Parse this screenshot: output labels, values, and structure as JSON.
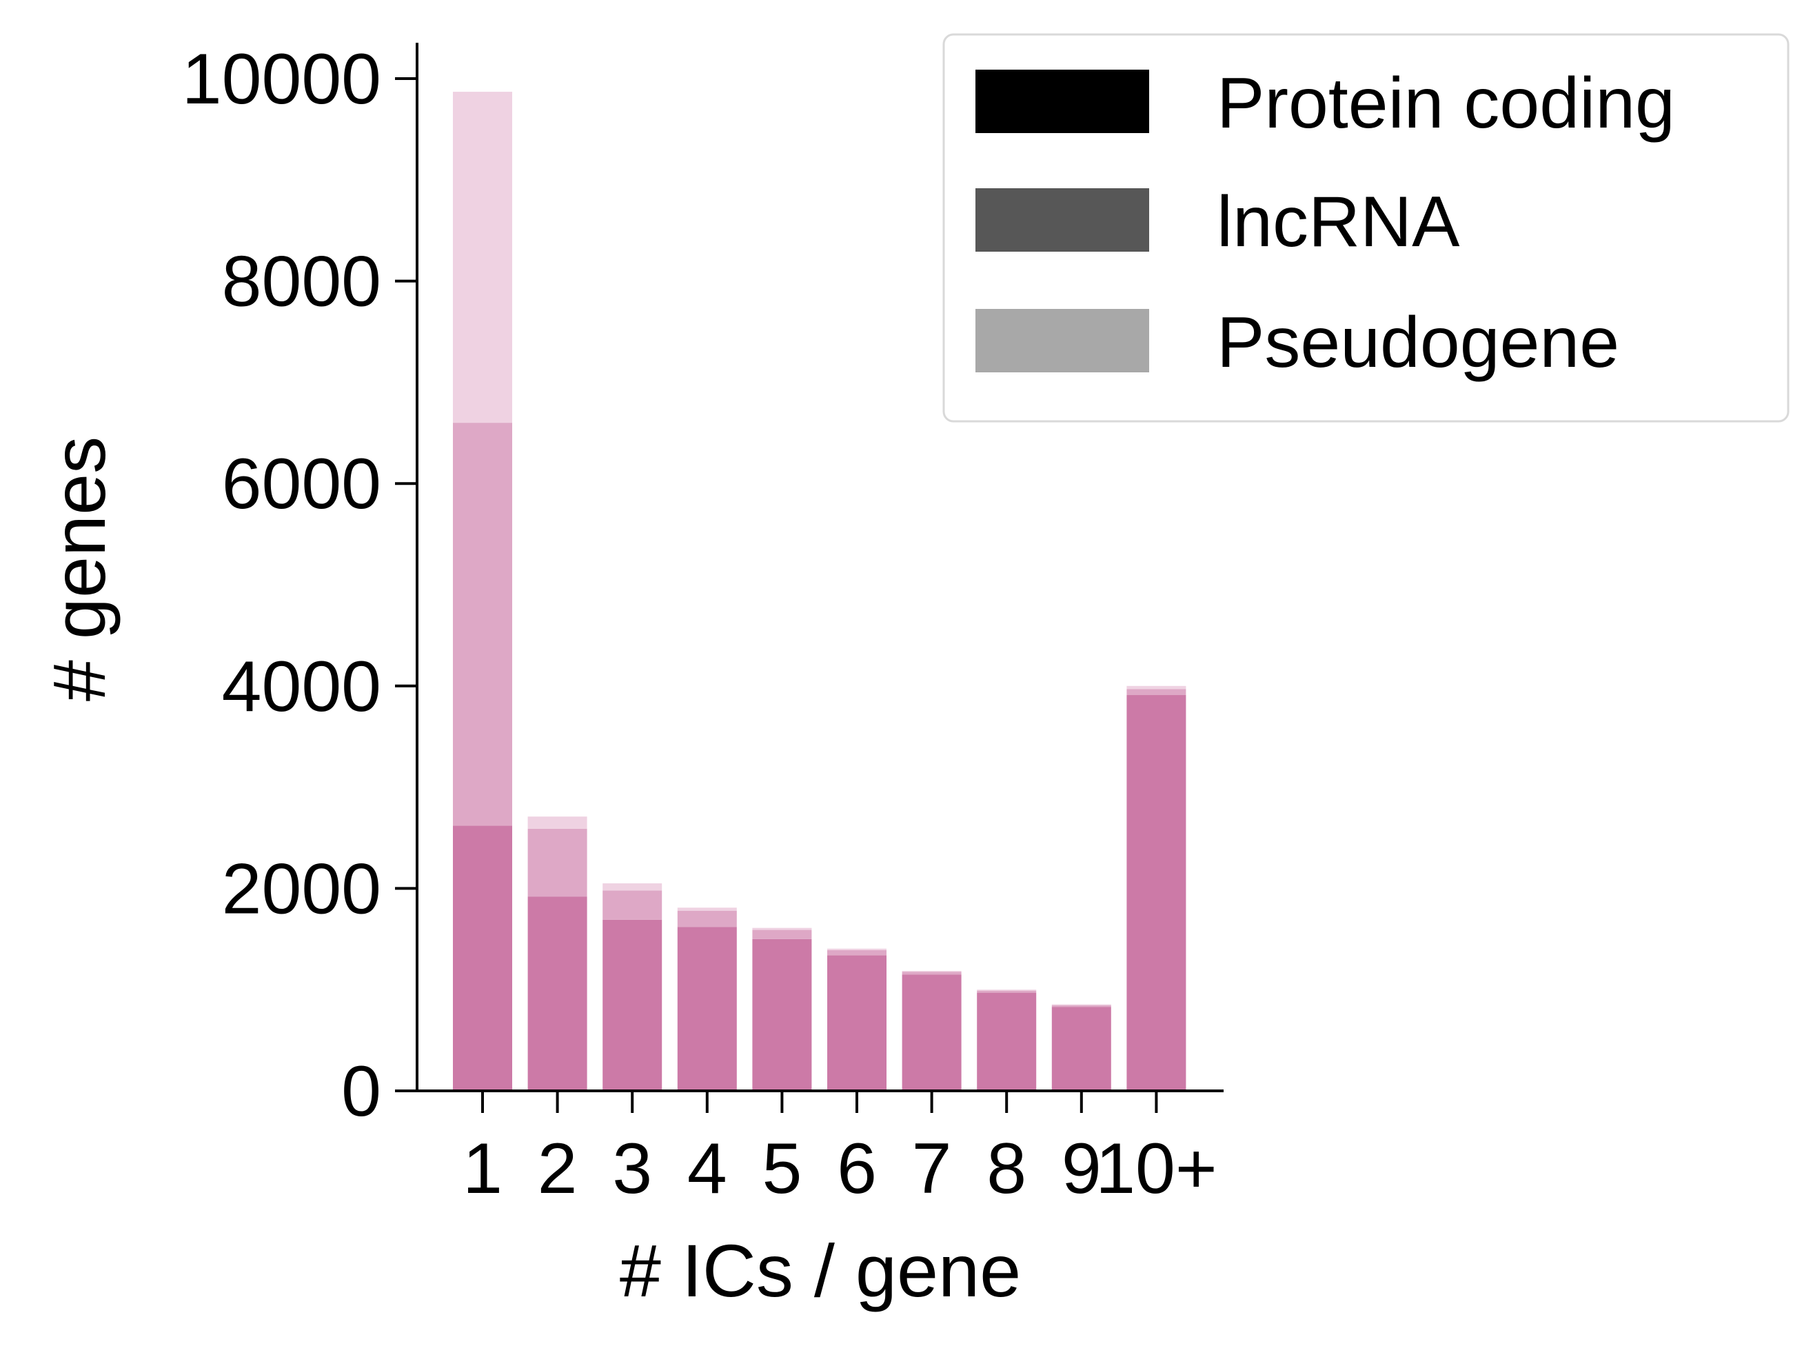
{
  "chart_data": {
    "type": "bar",
    "stacked": true,
    "categories": [
      "1",
      "2",
      "3",
      "4",
      "5",
      "6",
      "7",
      "8",
      "9",
      "10+"
    ],
    "series": [
      {
        "name": "Protein coding",
        "values": [
          2620,
          1920,
          1690,
          1620,
          1500,
          1340,
          1150,
          970,
          830,
          3910
        ]
      },
      {
        "name": "lncRNA",
        "values": [
          3980,
          670,
          290,
          160,
          90,
          50,
          25,
          20,
          15,
          60
        ]
      },
      {
        "name": "Pseudogene",
        "values": [
          3270,
          120,
          70,
          30,
          20,
          15,
          10,
          10,
          10,
          30
        ]
      }
    ],
    "xlabel": "# ICs / gene",
    "ylabel": "# genes",
    "ylim": [
      0,
      10400
    ],
    "yticks": [
      0,
      2000,
      4000,
      6000,
      8000,
      10000
    ],
    "grid": false,
    "legend": {
      "position": "top-right",
      "entries": [
        "Protein coding",
        "lncRNA",
        "Pseudogene"
      ],
      "swatch_colors": [
        "#000000",
        "#575757",
        "#a8a8a8"
      ]
    },
    "bar_colors": [
      "#cc7aa7",
      "#dea8c6",
      "#efd2e2"
    ]
  }
}
